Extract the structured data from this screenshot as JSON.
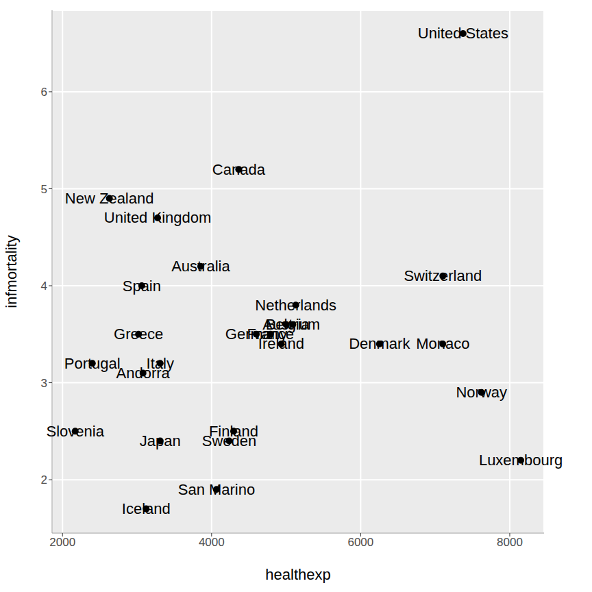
{
  "chart_data": {
    "type": "scatter",
    "x_label": "healthexp",
    "y_label": "infmortality",
    "color": "#000000",
    "grid": true,
    "xlim": [
      1860,
      8460
    ],
    "ylim": [
      1.45,
      6.84
    ],
    "xticks": [
      2000,
      4000,
      6000,
      8000
    ],
    "yticks": [
      2,
      3,
      4,
      5,
      6
    ],
    "labels": [
      "United States",
      "Canada",
      "New Zealand",
      "United Kingdom",
      "Australia",
      "Spain",
      "Netherlands",
      "Switzerland",
      "Greece",
      "Germany",
      "France",
      "Austria",
      "Belgium",
      "Ireland",
      "Denmark",
      "Monaco",
      "Norway",
      "Luxembourg",
      "Portugal",
      "Italy",
      "Andorra",
      "Slovenia",
      "Japan",
      "Finland",
      "Sweden",
      "San Marino",
      "Iceland"
    ],
    "x": [
      7374,
      4364,
      2629,
      3276,
      3854,
      3063,
      5129,
      7102,
      3020,
      4600,
      4790,
      5000,
      5090,
      4934,
      6252,
      7102,
      7621,
      8148,
      2400,
      3310,
      3080,
      2170,
      3310,
      4296,
      4236,
      4066,
      3122
    ],
    "y": [
      6.6,
      5.2,
      4.9,
      4.7,
      4.2,
      4.0,
      3.8,
      4.1,
      3.5,
      3.5,
      3.5,
      3.6,
      3.6,
      3.4,
      3.4,
      3.4,
      2.9,
      2.2,
      3.2,
      3.2,
      3.1,
      2.5,
      2.4,
      2.5,
      2.4,
      1.9,
      1.7
    ]
  }
}
